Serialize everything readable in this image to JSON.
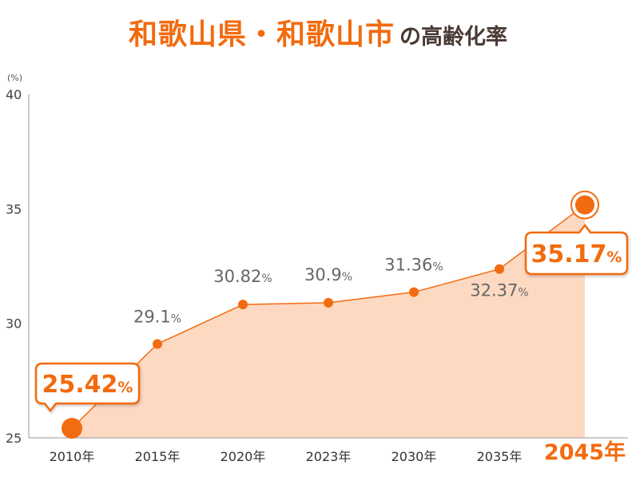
{
  "title": {
    "main": "和歌山県・和歌山市",
    "sub": "の高齢化率"
  },
  "colors": {
    "accent": "#f26b0f",
    "fill": "#fdd9c2",
    "label": "#666666",
    "axis": "#999999"
  },
  "chart_data": {
    "type": "area",
    "ylabel": "(%)",
    "ylim": [
      25,
      40
    ],
    "yticks": [
      "25",
      "30",
      "35",
      "40"
    ],
    "categories": [
      "2010年",
      "2015年",
      "2020年",
      "2023年",
      "2030年",
      "2035年",
      "2045年"
    ],
    "values": [
      25.42,
      29.1,
      30.82,
      30.9,
      31.36,
      32.37,
      35.17
    ],
    "value_labels": [
      "25.42",
      "29.1",
      "30.82",
      "30.9",
      "31.36",
      "32.37",
      "35.17"
    ],
    "unit": "%",
    "highlighted": [
      "2010年",
      "2045年"
    ],
    "grid": false
  }
}
